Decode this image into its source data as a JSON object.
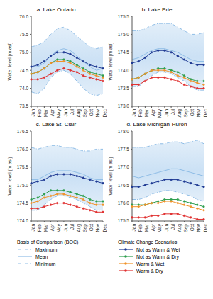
{
  "chart_data": [
    {
      "type": "line",
      "title": "a. Lake Ontario",
      "ylabel": "Water level (m asl)",
      "categories": [
        "Jan",
        "Feb",
        "Mar",
        "Apr",
        "May",
        "Jun",
        "Jul",
        "Aug",
        "Sep",
        "Oct",
        "Nov",
        "Dec"
      ],
      "ylim": [
        73.5,
        76.0
      ],
      "yticks": [
        73.5,
        {
          "value": 74,
          "label": "74.0"
        },
        74.5,
        {
          "value": 75,
          "label": "75.0"
        },
        75.5,
        {
          "value": 76,
          "label": "76.0"
        }
      ],
      "series": [
        {
          "name": "Maximum",
          "color": "#8fbde6",
          "line_style": "dashdot",
          "values": [
            75.15,
            75.2,
            75.3,
            75.5,
            75.65,
            75.7,
            75.6,
            75.45,
            75.3,
            75.15,
            75.1,
            75.15
          ]
        },
        {
          "name": "Mean",
          "color": "#8fbde6",
          "line_style": "solid",
          "values": [
            74.6,
            74.6,
            74.7,
            74.9,
            75.05,
            75.1,
            75.05,
            74.9,
            74.75,
            74.6,
            74.5,
            74.55
          ]
        },
        {
          "name": "Minimum",
          "color": "#8fbde6",
          "line_style": "dashdot",
          "values": [
            73.9,
            73.85,
            74.0,
            74.3,
            74.45,
            74.5,
            74.4,
            74.2,
            74.0,
            73.85,
            73.8,
            73.85
          ]
        },
        {
          "name": "Not as Warm & Wet",
          "color": "#1f3a93",
          "marker": "circle",
          "values": [
            74.6,
            74.65,
            74.75,
            74.9,
            75.0,
            75.0,
            74.95,
            74.85,
            74.75,
            74.65,
            74.6,
            74.55
          ]
        },
        {
          "name": "Not as Warm & Dry",
          "color": "#2e9e4f",
          "marker": "circle",
          "values": [
            74.4,
            74.45,
            74.55,
            74.7,
            74.8,
            74.8,
            74.75,
            74.65,
            74.55,
            74.45,
            74.4,
            74.35
          ]
        },
        {
          "name": "Warm & Wet",
          "color": "#f0932b",
          "marker": "circle",
          "values": [
            74.4,
            74.45,
            74.55,
            74.7,
            74.75,
            74.75,
            74.7,
            74.6,
            74.5,
            74.4,
            74.35,
            74.3
          ]
        },
        {
          "name": "Warm & Dry",
          "color": "#e03131",
          "marker": "circle",
          "values": [
            74.25,
            74.25,
            74.3,
            74.4,
            74.5,
            74.55,
            74.5,
            74.45,
            74.35,
            74.3,
            74.25,
            74.2
          ]
        }
      ]
    },
    {
      "type": "line",
      "title": "b. Lake Erie",
      "ylabel": "Water level (m asl)",
      "categories": [
        "Jan",
        "Feb",
        "Mar",
        "Apr",
        "May",
        "Jun",
        "Jul",
        "Aug",
        "Sep",
        "Oct",
        "Nov",
        "Dec"
      ],
      "ylim": [
        173.0,
        175.5
      ],
      "yticks": [
        {
          "value": 173,
          "label": "173.0"
        },
        173.5,
        {
          "value": 174,
          "label": "174.0"
        },
        174.5,
        {
          "value": 175,
          "label": "175.0"
        },
        175.5
      ],
      "series": [
        {
          "name": "Maximum",
          "color": "#8fbde6",
          "line_style": "dashdot",
          "values": [
            175.1,
            175.1,
            175.15,
            175.25,
            175.3,
            175.3,
            175.3,
            175.2,
            175.1,
            175.0,
            175.0,
            175.05
          ]
        },
        {
          "name": "Mean",
          "color": "#8fbde6",
          "line_style": "solid",
          "values": [
            174.3,
            174.35,
            174.45,
            174.55,
            174.6,
            174.6,
            174.55,
            174.5,
            174.4,
            174.3,
            174.25,
            174.25
          ]
        },
        {
          "name": "Minimum",
          "color": "#8fbde6",
          "line_style": "dashdot",
          "values": [
            173.55,
            173.55,
            173.7,
            173.85,
            173.95,
            173.95,
            173.9,
            173.8,
            173.7,
            173.55,
            173.45,
            173.45
          ]
        },
        {
          "name": "Not as Warm & Wet",
          "color": "#1f3a93",
          "marker": "circle",
          "values": [
            174.2,
            174.25,
            174.35,
            174.5,
            174.55,
            174.55,
            174.5,
            174.4,
            174.3,
            174.2,
            174.15,
            174.15
          ]
        },
        {
          "name": "Not as Warm & Dry",
          "color": "#2e9e4f",
          "marker": "circle",
          "values": [
            173.75,
            173.8,
            173.9,
            174.0,
            174.05,
            174.05,
            174.0,
            173.95,
            173.85,
            173.75,
            173.7,
            173.7
          ]
        },
        {
          "name": "Warm & Wet",
          "color": "#f0932b",
          "marker": "circle",
          "values": [
            173.75,
            173.8,
            173.9,
            174.0,
            174.0,
            174.0,
            173.95,
            173.85,
            173.8,
            173.7,
            173.65,
            173.6
          ]
        },
        {
          "name": "Warm & Dry",
          "color": "#e03131",
          "marker": "circle",
          "values": [
            173.6,
            173.6,
            173.7,
            173.8,
            173.8,
            173.8,
            173.75,
            173.7,
            173.6,
            173.55,
            173.5,
            173.5
          ]
        }
      ]
    },
    {
      "type": "line",
      "title": "c. Lake St. Clair",
      "ylabel": "Water level (m asl)",
      "categories": [
        "Jan",
        "Feb",
        "Mar",
        "Apr",
        "May",
        "Jun",
        "Jul",
        "Aug",
        "Sep",
        "Oct",
        "Nov",
        "Dec"
      ],
      "ylim": [
        174.0,
        176.5
      ],
      "yticks": [
        {
          "value": 174,
          "label": "174.0"
        },
        174.5,
        {
          "value": 175,
          "label": "175.0"
        },
        175.5,
        {
          "value": 176,
          "label": "176.0"
        },
        176.5
      ],
      "series": [
        {
          "name": "Maximum",
          "color": "#8fbde6",
          "line_style": "dashdot",
          "values": [
            176.05,
            176.0,
            176.05,
            176.1,
            176.1,
            176.05,
            176.05,
            176.0,
            175.95,
            175.95,
            176.0,
            176.0
          ]
        },
        {
          "name": "Mean",
          "color": "#8fbde6",
          "line_style": "solid",
          "values": [
            175.15,
            175.15,
            175.25,
            175.35,
            175.4,
            175.4,
            175.4,
            175.35,
            175.3,
            175.2,
            175.15,
            175.15
          ]
        },
        {
          "name": "Minimum",
          "color": "#8fbde6",
          "line_style": "dashdot",
          "values": [
            174.3,
            174.3,
            174.45,
            174.6,
            174.7,
            174.7,
            174.65,
            174.6,
            174.5,
            174.4,
            174.3,
            174.3
          ]
        },
        {
          "name": "Not as Warm & Wet",
          "color": "#1f3a93",
          "marker": "circle",
          "values": [
            175.05,
            175.1,
            175.15,
            175.25,
            175.3,
            175.3,
            175.3,
            175.25,
            175.2,
            175.15,
            175.1,
            175.05
          ]
        },
        {
          "name": "Not as Warm & Dry",
          "color": "#2e9e4f",
          "marker": "circle",
          "values": [
            174.6,
            174.65,
            174.75,
            174.85,
            174.85,
            174.85,
            174.8,
            174.75,
            174.7,
            174.6,
            174.55,
            174.55
          ]
        },
        {
          "name": "Warm & Wet",
          "color": "#f0932b",
          "marker": "circle",
          "values": [
            174.5,
            174.55,
            174.65,
            174.7,
            174.75,
            174.75,
            174.7,
            174.65,
            174.6,
            174.5,
            174.45,
            174.45
          ]
        },
        {
          "name": "Warm & Dry",
          "color": "#e03131",
          "marker": "circle",
          "values": [
            174.35,
            174.35,
            174.4,
            174.45,
            174.5,
            174.5,
            174.45,
            174.4,
            174.35,
            174.3,
            174.25,
            174.25
          ]
        }
      ]
    },
    {
      "type": "line",
      "title": "d. Lake Michigan-Huron",
      "ylabel": "Water level (m asl)",
      "categories": [
        "Jan",
        "Feb",
        "Mar",
        "Apr",
        "May",
        "Jun",
        "Jul",
        "Aug",
        "Sep",
        "Oct",
        "Nov",
        "Dec"
      ],
      "ylim": [
        175.5,
        178.0
      ],
      "yticks": [
        175.5,
        {
          "value": 176,
          "label": "176.0"
        },
        176.5,
        {
          "value": 177,
          "label": "177.0"
        },
        177.5,
        {
          "value": 178,
          "label": "178.0"
        }
      ],
      "series": [
        {
          "name": "Maximum",
          "color": "#8fbde6",
          "line_style": "dashdot",
          "values": [
            177.55,
            177.55,
            177.55,
            177.6,
            177.65,
            177.65,
            177.7,
            177.7,
            177.65,
            177.7,
            177.75,
            177.65
          ]
        },
        {
          "name": "Mean",
          "color": "#8fbde6",
          "line_style": "solid",
          "values": [
            176.75,
            176.7,
            176.75,
            176.8,
            176.85,
            176.9,
            176.95,
            176.95,
            176.9,
            176.85,
            176.8,
            176.75
          ]
        },
        {
          "name": "Minimum",
          "color": "#8fbde6",
          "line_style": "dashdot",
          "values": [
            176.1,
            176.1,
            176.15,
            176.25,
            176.3,
            176.35,
            176.35,
            176.3,
            176.25,
            176.2,
            176.1,
            176.05
          ]
        },
        {
          "name": "Not as Warm & Wet",
          "color": "#1f3a93",
          "marker": "circle",
          "values": [
            176.45,
            176.45,
            176.5,
            176.55,
            176.6,
            176.65,
            176.65,
            176.65,
            176.6,
            176.55,
            176.5,
            176.45
          ]
        },
        {
          "name": "Not as Warm & Dry",
          "color": "#2e9e4f",
          "marker": "circle",
          "values": [
            175.95,
            175.95,
            175.95,
            176.0,
            176.05,
            176.1,
            176.1,
            176.1,
            176.05,
            176.0,
            175.95,
            175.9
          ]
        },
        {
          "name": "Warm & Wet",
          "color": "#f0932b",
          "marker": "circle",
          "values": [
            175.9,
            175.9,
            175.95,
            176.0,
            176.0,
            176.05,
            176.05,
            176.0,
            175.95,
            175.9,
            175.85,
            175.8
          ]
        },
        {
          "name": "Warm & Dry",
          "color": "#e03131",
          "marker": "circle",
          "values": [
            175.6,
            175.6,
            175.6,
            175.65,
            175.65,
            175.7,
            175.7,
            175.7,
            175.65,
            175.6,
            175.55,
            175.55
          ]
        }
      ]
    }
  ],
  "legend_groups": [
    {
      "title": "Basis of Comparison (BOC)",
      "series": [
        "Maximum",
        "Mean",
        "Minimum"
      ]
    },
    {
      "title": "Climate Change Scenarios",
      "series": [
        "Not as Warm & Wet",
        "Not as Warm & Dry",
        "Warm & Wet",
        "Warm & Dry"
      ]
    }
  ]
}
